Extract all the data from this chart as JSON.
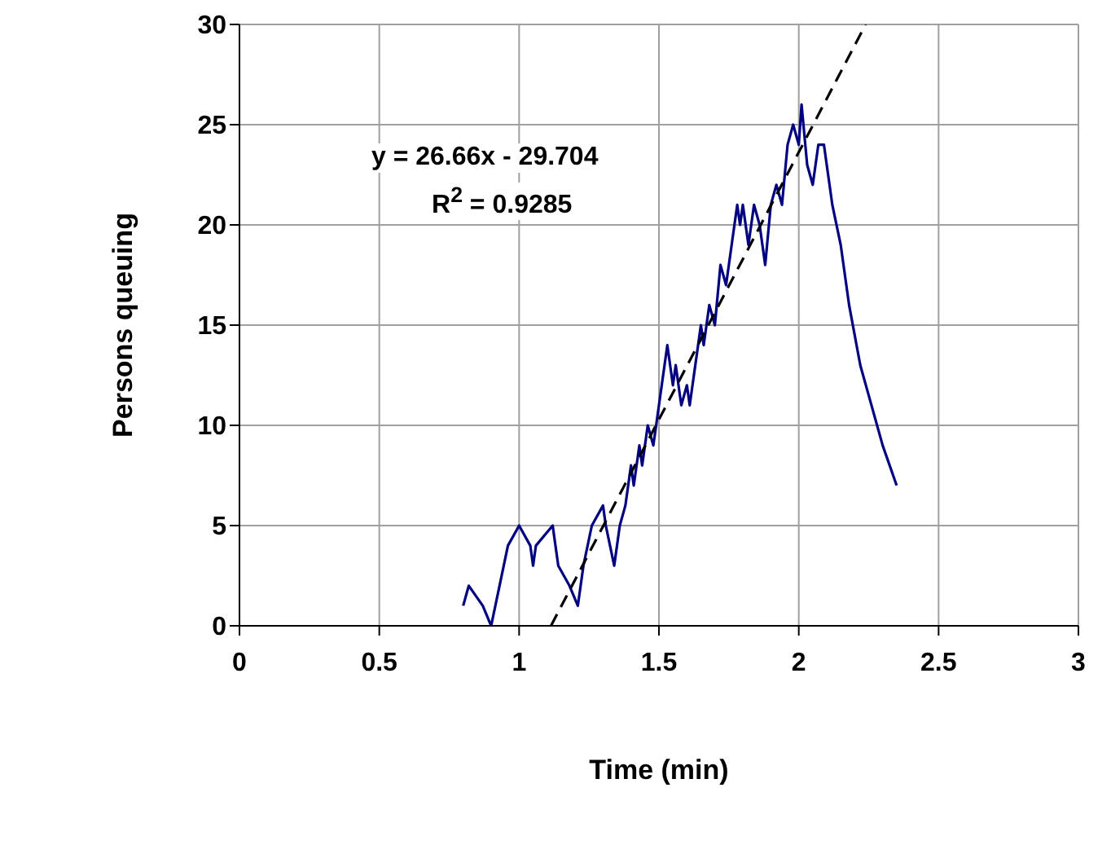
{
  "chart_data": {
    "type": "line",
    "xlabel": "Time (min)",
    "ylabel": "Persons queuing",
    "annotations": [
      "y = 26.66x - 29.704",
      "R$^{2}$ = 0.9285"
    ],
    "xlim": [
      0,
      3
    ],
    "xticks": [
      0,
      0.5,
      1,
      1.5,
      2,
      2.5,
      3
    ],
    "ylim": [
      0,
      30
    ],
    "yticks": [
      0,
      5,
      10,
      15,
      20,
      25,
      30
    ],
    "grid": true,
    "marker": "none",
    "series": [
      {
        "color": "#000080",
        "line_style": "solid",
        "x": [
          0.8,
          0.82,
          0.87,
          0.9,
          0.93,
          0.96,
          1.0,
          1.04,
          1.05,
          1.06,
          1.12,
          1.14,
          1.18,
          1.21,
          1.23,
          1.26,
          1.3,
          1.31,
          1.34,
          1.36,
          1.38,
          1.4,
          1.41,
          1.43,
          1.44,
          1.46,
          1.48,
          1.5,
          1.51,
          1.53,
          1.55,
          1.56,
          1.58,
          1.6,
          1.61,
          1.63,
          1.65,
          1.66,
          1.68,
          1.7,
          1.72,
          1.74,
          1.76,
          1.78,
          1.79,
          1.8,
          1.82,
          1.84,
          1.86,
          1.88,
          1.9,
          1.92,
          1.94,
          1.96,
          1.98,
          2.0,
          2.01,
          2.03,
          2.05,
          2.07,
          2.09,
          2.1,
          2.12,
          2.15,
          2.18,
          2.22,
          2.26,
          2.3,
          2.35
        ],
        "values": [
          1,
          2,
          1,
          0,
          2,
          4,
          5,
          4,
          3,
          4,
          5,
          3,
          2,
          1,
          3,
          5,
          6,
          5,
          3,
          5,
          6,
          8,
          7,
          9,
          8,
          10,
          9,
          11,
          12,
          14,
          12,
          13,
          11,
          12,
          11,
          13,
          15,
          14,
          16,
          15,
          18,
          17,
          19,
          21,
          20,
          21,
          19,
          21,
          20,
          18,
          21,
          22,
          21,
          24,
          25,
          24,
          26,
          23,
          22,
          24,
          24,
          23,
          21,
          19,
          16,
          13,
          11,
          9,
          7
        ]
      },
      {
        "type": "line",
        "color": "#000000",
        "line_style": "dashed",
        "x": [
          1.114,
          2.239
        ],
        "values": [
          0,
          30
        ]
      }
    ]
  }
}
